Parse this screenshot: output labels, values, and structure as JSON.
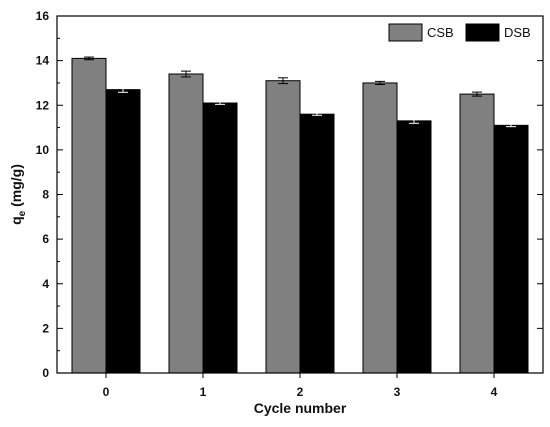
{
  "chart_data": {
    "type": "bar",
    "categories": [
      "0",
      "1",
      "2",
      "3",
      "4"
    ],
    "series": [
      {
        "name": "CSB",
        "color": "#808080",
        "values": [
          14.1,
          13.4,
          13.1,
          13.0,
          12.5
        ],
        "errors": [
          0.06,
          0.13,
          0.13,
          0.07,
          0.09
        ]
      },
      {
        "name": "DSB",
        "color": "#000000",
        "values": [
          12.7,
          12.1,
          11.6,
          11.3,
          11.1
        ],
        "errors": [
          0.12,
          0.06,
          0.05,
          0.11,
          0.06
        ]
      }
    ],
    "xlabel": "Cycle number",
    "ylabel": "q",
    "ylabel_subscript": "e",
    "ylabel_unit": " (mg/g)",
    "ylim": [
      0,
      16
    ],
    "yticks": [
      0,
      2,
      4,
      6,
      8,
      10,
      12,
      14,
      16
    ],
    "grid": false,
    "legend_position": "top-right"
  }
}
